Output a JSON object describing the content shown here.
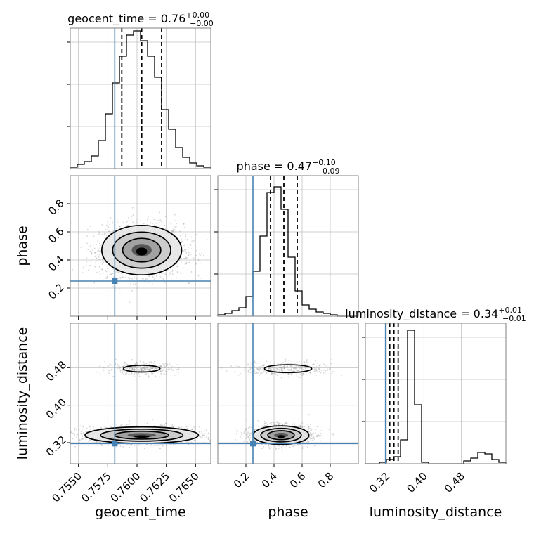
{
  "chart_data": {
    "type": "corner",
    "colors": {
      "truth": "#4682b4",
      "hist": "#000000",
      "grid": "#c0c0c0",
      "samples": "#8c8c8c"
    },
    "grid": true,
    "parameters": [
      {
        "name": "geocent_time",
        "xlabel": "geocent_time",
        "range": [
          0.7543,
          0.7663
        ],
        "ticks": [
          0.755,
          0.7575,
          0.76,
          0.7625,
          0.765
        ],
        "tick_labels": [
          "0.7550",
          "0.7575",
          "0.7600",
          "0.7625",
          "0.7650"
        ],
        "truth": 0.7581,
        "quantiles": [
          0.7587,
          0.7604,
          0.7621
        ],
        "title_prefix": "geocent_time = ",
        "title_value": "0.76",
        "title_plus": "+0.00",
        "title_minus": "−0.00",
        "hist_counts": [
          0.01,
          0.03,
          0.05,
          0.09,
          0.2,
          0.39,
          0.61,
          0.8,
          0.95,
          0.98,
          0.91,
          0.8,
          0.65,
          0.42,
          0.28,
          0.15,
          0.08,
          0.04,
          0.02,
          0.01
        ]
      },
      {
        "name": "phase",
        "xlabel": "phase",
        "ylabel": "phase",
        "range": [
          0.0,
          1.0
        ],
        "ticks": [
          0.2,
          0.4,
          0.6,
          0.8
        ],
        "tick_labels": [
          "0.2",
          "0.4",
          "0.6",
          "0.8"
        ],
        "truth": 0.25,
        "quantiles": [
          0.375,
          0.47,
          0.565
        ],
        "title_prefix": "phase = ",
        "title_value": "0.47",
        "title_plus": "+0.10",
        "title_minus": "−0.09",
        "hist_counts": [
          0.01,
          0.02,
          0.04,
          0.06,
          0.14,
          0.32,
          0.57,
          0.88,
          0.92,
          0.76,
          0.42,
          0.18,
          0.08,
          0.05,
          0.03,
          0.02,
          0.01,
          0.0,
          0.0,
          0.0
        ]
      },
      {
        "name": "luminosity_distance",
        "xlabel": "luminosity_distance",
        "ylabel": "luminosity_distance",
        "range": [
          0.275,
          0.575
        ],
        "ticks": [
          0.32,
          0.4,
          0.48
        ],
        "tick_labels": [
          "0.32",
          "0.40",
          "0.48"
        ],
        "truth": 0.318,
        "quantiles": [
          0.327,
          0.336,
          0.345
        ],
        "title_prefix": "luminosity_distance = ",
        "title_value": "0.34",
        "title_plus": "+0.01",
        "title_minus": "−0.01",
        "hist_counts": [
          0.0,
          0.0,
          0.01,
          0.03,
          0.05,
          0.17,
          0.95,
          0.42,
          0.01,
          0.0,
          0.0,
          0.0,
          0.0,
          0.0,
          0.02,
          0.04,
          0.08,
          0.07,
          0.03,
          0.01
        ]
      }
    ],
    "pairs": [
      {
        "x": "geocent_time",
        "y": "phase",
        "center": [
          0.7604,
          0.47
        ],
        "sigma": [
          0.00155,
          0.08
        ]
      },
      {
        "x": "geocent_time",
        "y": "luminosity_distance",
        "modes": [
          {
            "center": [
              0.7604,
              0.336
            ],
            "sigma": [
              0.0022,
              0.008
            ],
            "weight": 0.85
          },
          {
            "center": [
              0.7604,
              0.478
            ],
            "sigma": [
              0.0013,
              0.006
            ],
            "weight": 0.15
          }
        ]
      },
      {
        "x": "phase",
        "y": "luminosity_distance",
        "modes": [
          {
            "center": [
              0.45,
              0.336
            ],
            "sigma": [
              0.09,
              0.009
            ],
            "weight": 0.85
          },
          {
            "center": [
              0.5,
              0.478
            ],
            "sigma": [
              0.14,
              0.007
            ],
            "weight": 0.15
          }
        ]
      }
    ]
  }
}
